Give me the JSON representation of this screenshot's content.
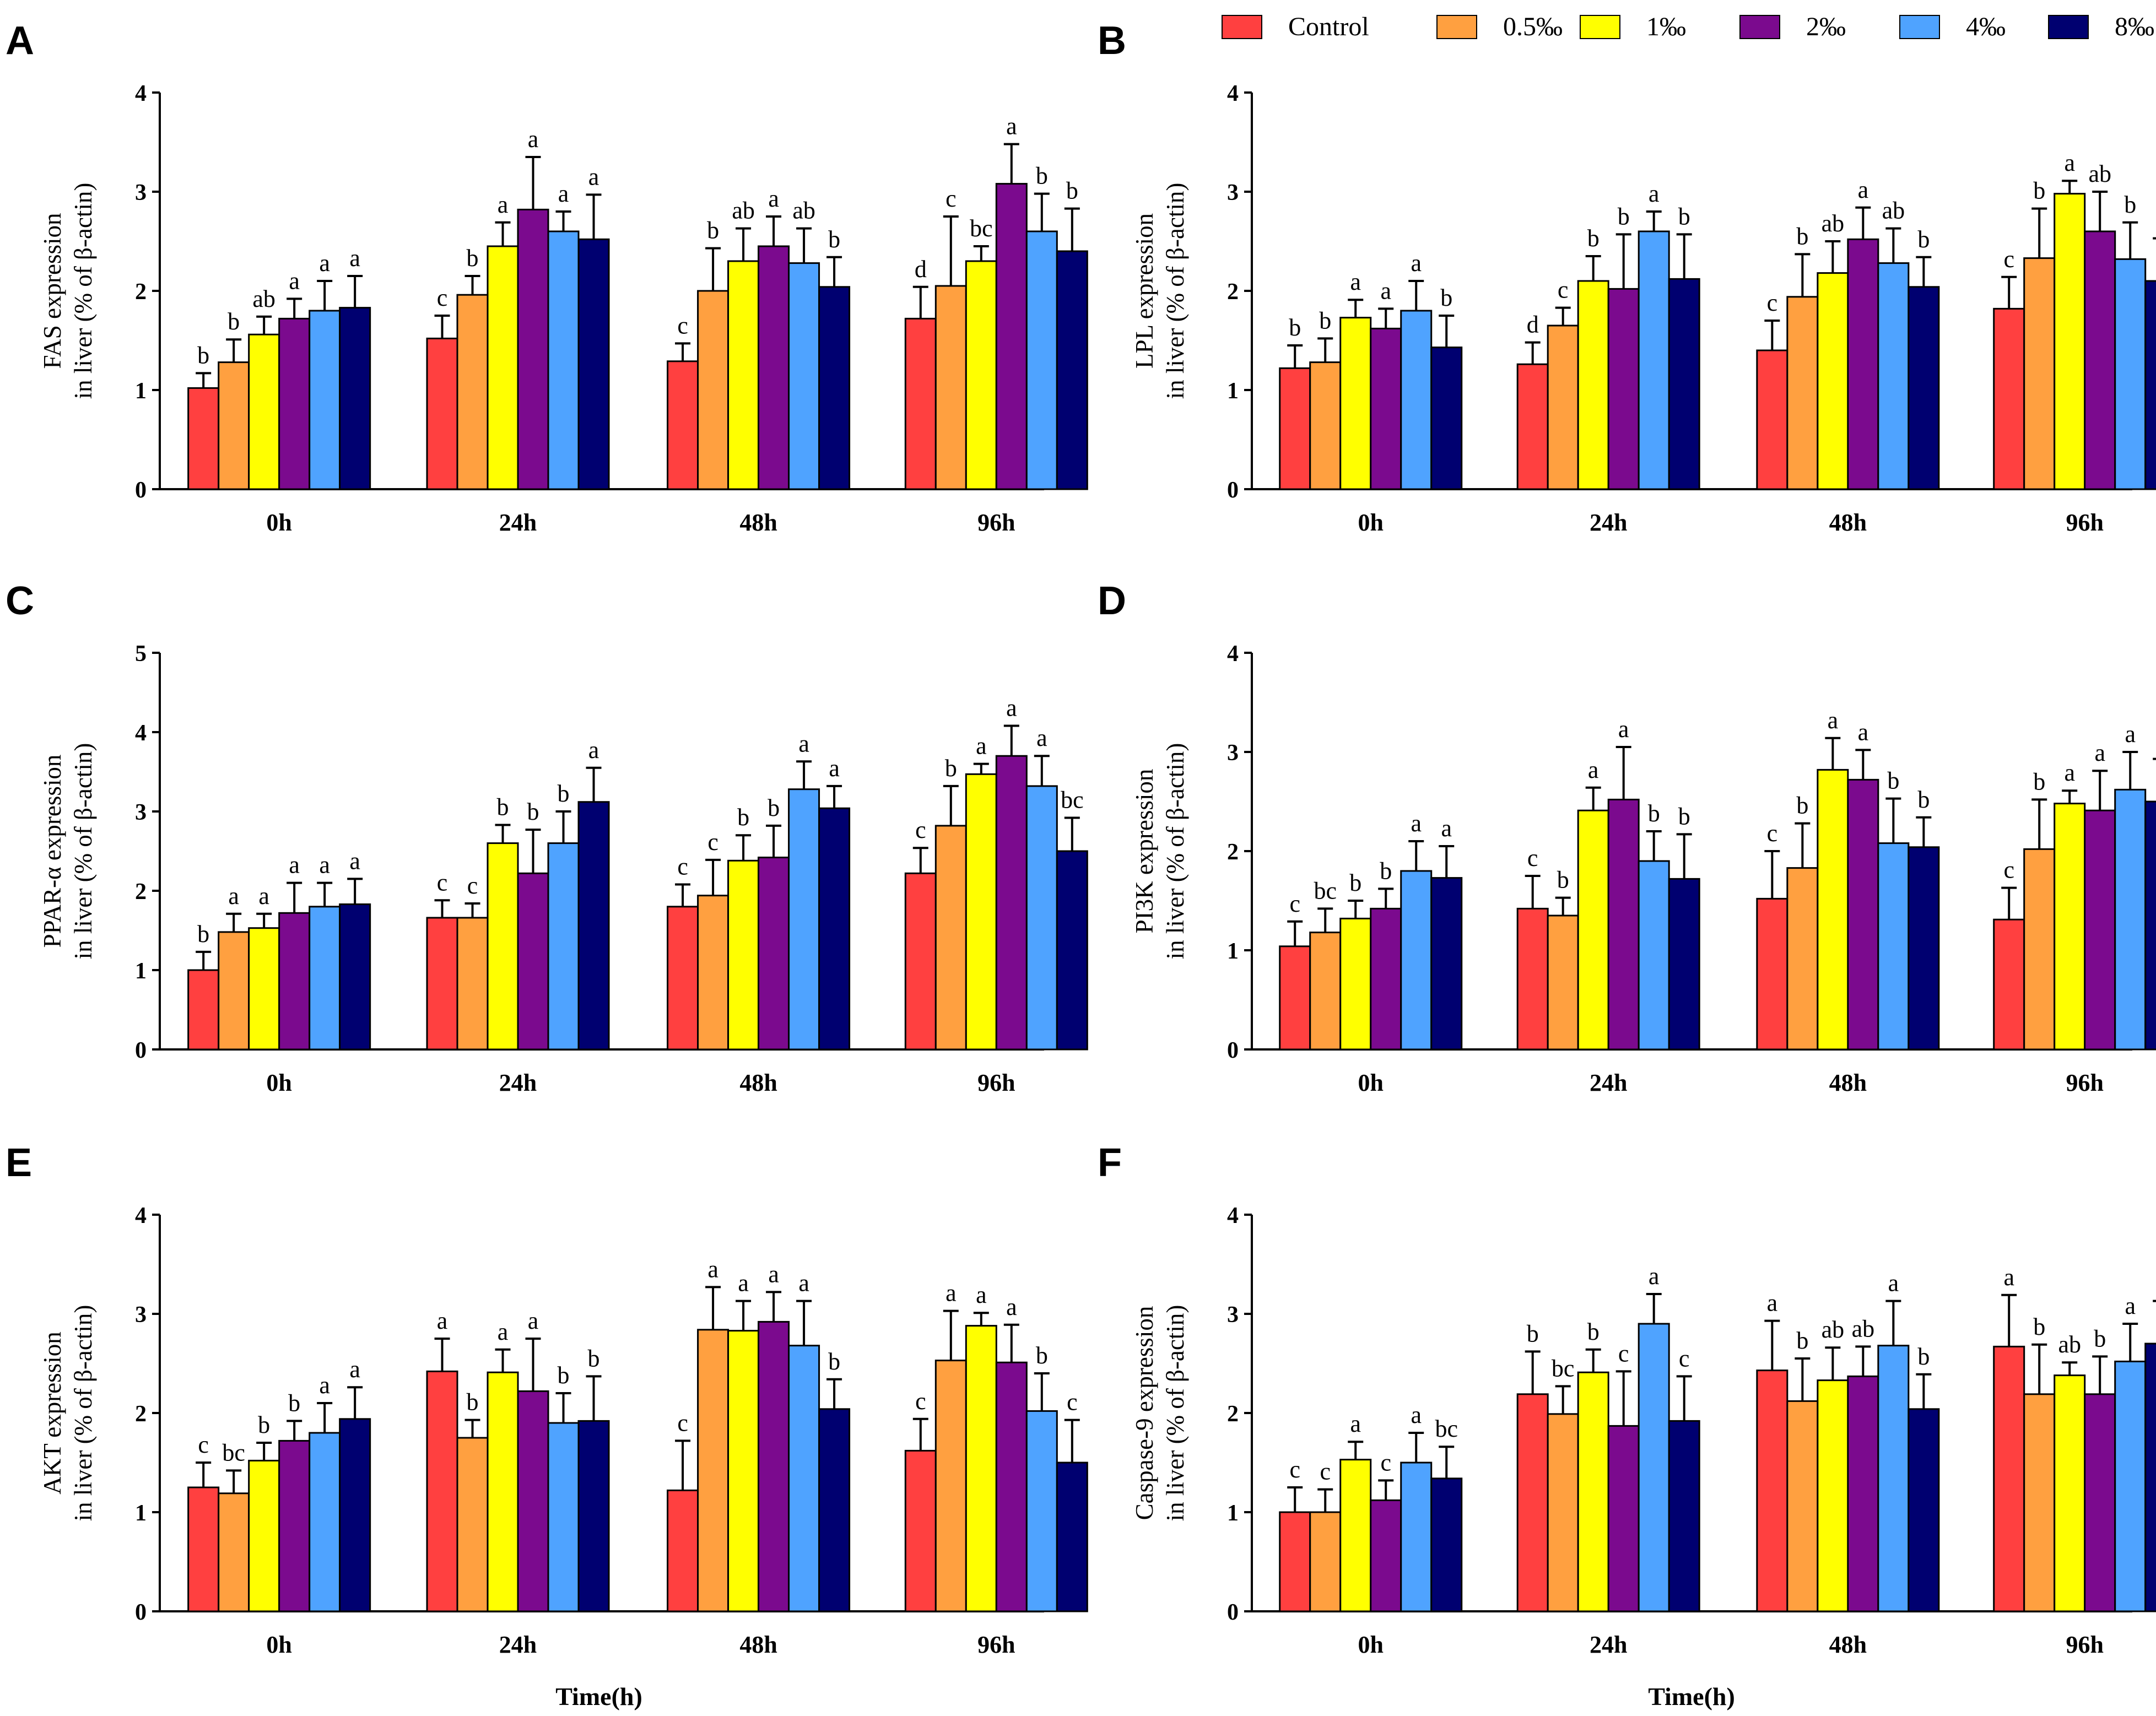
{
  "legend": {
    "items": [
      {
        "name": "Control",
        "color": "#ff4040"
      },
      {
        "name": "0.5‰",
        "color": "#ffa040"
      },
      {
        "name": "1‰",
        "color": "#ffff00"
      },
      {
        "name": "2‰",
        "color": "#7b0a8e"
      },
      {
        "name": "4‰",
        "color": "#4fa3ff"
      },
      {
        "name": "8‰",
        "color": "#000070"
      }
    ]
  },
  "x_axis_title": "Time(h)",
  "chart_data": [
    {
      "panel": "A",
      "type": "bar",
      "ylabel": [
        "FAS expression",
        "in liver (% of β-actin)"
      ],
      "categories": [
        "0h",
        "24h",
        "48h",
        "96h"
      ],
      "ylim": [
        0,
        4
      ],
      "yticks": [
        "0",
        "1",
        "2",
        "3",
        "4"
      ],
      "series": [
        {
          "name": "Control",
          "values": [
            1.02,
            1.52,
            1.29,
            1.72
          ],
          "errors": [
            0.15,
            0.23,
            0.18,
            0.32
          ],
          "letters": [
            "b",
            "c",
            "c",
            "d"
          ]
        },
        {
          "name": "0.5‰",
          "values": [
            1.28,
            1.96,
            2.0,
            2.05
          ],
          "errors": [
            0.23,
            0.19,
            0.43,
            0.7
          ],
          "letters": [
            "b",
            "b",
            "b",
            "c"
          ]
        },
        {
          "name": "1‰",
          "values": [
            1.56,
            2.45,
            2.3,
            2.3
          ],
          "errors": [
            0.18,
            0.24,
            0.33,
            0.15
          ],
          "letters": [
            "ab",
            "a",
            "ab",
            "bc"
          ]
        },
        {
          "name": "2‰",
          "values": [
            1.72,
            2.82,
            2.45,
            3.08
          ],
          "errors": [
            0.2,
            0.53,
            0.3,
            0.4
          ],
          "letters": [
            "a",
            "a",
            "a",
            "a"
          ]
        },
        {
          "name": "4‰",
          "values": [
            1.8,
            2.6,
            2.28,
            2.6
          ],
          "errors": [
            0.3,
            0.2,
            0.35,
            0.38
          ],
          "letters": [
            "a",
            "a",
            "ab",
            "b"
          ]
        },
        {
          "name": "8‰",
          "values": [
            1.83,
            2.52,
            2.04,
            2.4
          ],
          "errors": [
            0.32,
            0.45,
            0.3,
            0.43
          ],
          "letters": [
            "a",
            "a",
            "b",
            "b"
          ]
        }
      ]
    },
    {
      "panel": "B",
      "type": "bar",
      "ylabel": [
        "LPL expression",
        "in liver (% of β-actin)"
      ],
      "categories": [
        "0h",
        "24h",
        "48h",
        "96h"
      ],
      "ylim": [
        0,
        4
      ],
      "yticks": [
        "0",
        "1",
        "2",
        "3",
        "4"
      ],
      "series": [
        {
          "name": "Control",
          "values": [
            1.22,
            1.26,
            1.4,
            1.82
          ],
          "errors": [
            0.23,
            0.22,
            0.3,
            0.32
          ],
          "letters": [
            "b",
            "d",
            "c",
            "c"
          ]
        },
        {
          "name": "0.5‰",
          "values": [
            1.28,
            1.65,
            1.94,
            2.33
          ],
          "errors": [
            0.24,
            0.18,
            0.43,
            0.5
          ],
          "letters": [
            "b",
            "c",
            "b",
            "b"
          ]
        },
        {
          "name": "1‰",
          "values": [
            1.73,
            2.1,
            2.18,
            2.98
          ],
          "errors": [
            0.18,
            0.25,
            0.32,
            0.13
          ],
          "letters": [
            "a",
            "b",
            "ab",
            "a"
          ]
        },
        {
          "name": "2‰",
          "values": [
            1.62,
            2.02,
            2.52,
            2.6
          ],
          "errors": [
            0.2,
            0.55,
            0.32,
            0.4
          ],
          "letters": [
            "a",
            "b",
            "a",
            "ab"
          ]
        },
        {
          "name": "4‰",
          "values": [
            1.8,
            2.6,
            2.28,
            2.32
          ],
          "errors": [
            0.3,
            0.2,
            0.35,
            0.37
          ],
          "letters": [
            "a",
            "a",
            "ab",
            "b"
          ]
        },
        {
          "name": "8‰",
          "values": [
            1.43,
            2.12,
            2.04,
            2.1
          ],
          "errors": [
            0.32,
            0.45,
            0.3,
            0.43
          ],
          "letters": [
            "b",
            "b",
            "b",
            "c"
          ]
        }
      ]
    },
    {
      "panel": "C",
      "type": "bar",
      "ylabel": [
        "PPAR-α expression",
        "in liver (% of β-actin)"
      ],
      "categories": [
        "0h",
        "24h",
        "48h",
        "96h"
      ],
      "ylim": [
        0,
        5
      ],
      "yticks": [
        "0",
        "1",
        "2",
        "3",
        "4",
        "5"
      ],
      "series": [
        {
          "name": "Control",
          "values": [
            1.0,
            1.66,
            1.8,
            2.22
          ],
          "errors": [
            0.23,
            0.22,
            0.28,
            0.32
          ],
          "letters": [
            "b",
            "c",
            "c",
            "c"
          ]
        },
        {
          "name": "0.5‰",
          "values": [
            1.48,
            1.66,
            1.94,
            2.82
          ],
          "errors": [
            0.23,
            0.18,
            0.45,
            0.5
          ],
          "letters": [
            "a",
            "c",
            "c",
            "b"
          ]
        },
        {
          "name": "1‰",
          "values": [
            1.53,
            2.6,
            2.38,
            3.47
          ],
          "errors": [
            0.18,
            0.23,
            0.32,
            0.13
          ],
          "letters": [
            "a",
            "b",
            "b",
            "a"
          ]
        },
        {
          "name": "2‰",
          "values": [
            1.72,
            2.22,
            2.42,
            3.7
          ],
          "errors": [
            0.38,
            0.55,
            0.4,
            0.38
          ],
          "letters": [
            "a",
            "b",
            "b",
            "a"
          ]
        },
        {
          "name": "4‰",
          "values": [
            1.8,
            2.6,
            3.28,
            3.32
          ],
          "errors": [
            0.3,
            0.4,
            0.35,
            0.38
          ],
          "letters": [
            "a",
            "b",
            "a",
            "a"
          ]
        },
        {
          "name": "8‰",
          "values": [
            1.83,
            3.12,
            3.04,
            2.5
          ],
          "errors": [
            0.32,
            0.43,
            0.28,
            0.42
          ],
          "letters": [
            "a",
            "a",
            "a",
            "bc"
          ]
        }
      ]
    },
    {
      "panel": "D",
      "type": "bar",
      "ylabel": [
        "PI3K expression",
        "in liver (% of β-actin)"
      ],
      "categories": [
        "0h",
        "24h",
        "48h",
        "96h"
      ],
      "ylim": [
        0,
        4
      ],
      "yticks": [
        "0",
        "1",
        "2",
        "3",
        "4"
      ],
      "series": [
        {
          "name": "Control",
          "values": [
            1.04,
            1.42,
            1.52,
            1.31
          ],
          "errors": [
            0.25,
            0.33,
            0.48,
            0.32
          ],
          "letters": [
            "c",
            "c",
            "c",
            "c"
          ]
        },
        {
          "name": "0.5‰",
          "values": [
            1.18,
            1.35,
            1.83,
            2.02
          ],
          "errors": [
            0.24,
            0.18,
            0.45,
            0.5
          ],
          "letters": [
            "bc",
            "b",
            "b",
            "b"
          ]
        },
        {
          "name": "1‰",
          "values": [
            1.32,
            2.41,
            2.82,
            2.48
          ],
          "errors": [
            0.18,
            0.23,
            0.32,
            0.13
          ],
          "letters": [
            "b",
            "a",
            "a",
            "a"
          ]
        },
        {
          "name": "2‰",
          "values": [
            1.42,
            2.52,
            2.72,
            2.41
          ],
          "errors": [
            0.2,
            0.53,
            0.3,
            0.4
          ],
          "letters": [
            "b",
            "a",
            "a",
            "a"
          ]
        },
        {
          "name": "4‰",
          "values": [
            1.8,
            1.9,
            2.08,
            2.62
          ],
          "errors": [
            0.3,
            0.3,
            0.45,
            0.38
          ],
          "letters": [
            "a",
            "b",
            "b",
            "a"
          ]
        },
        {
          "name": "8‰",
          "values": [
            1.73,
            1.72,
            2.04,
            2.5
          ],
          "errors": [
            0.32,
            0.45,
            0.3,
            0.43
          ],
          "letters": [
            "a",
            "b",
            "b",
            "a"
          ]
        }
      ]
    },
    {
      "panel": "E",
      "type": "bar",
      "ylabel": [
        "AKT expression",
        "in liver (% of β-actin)"
      ],
      "categories": [
        "0h",
        "24h",
        "48h",
        "96h"
      ],
      "ylim": [
        0,
        4
      ],
      "yticks": [
        "0",
        "1",
        "2",
        "3",
        "4"
      ],
      "series": [
        {
          "name": "Control",
          "values": [
            1.25,
            2.42,
            1.22,
            1.62
          ],
          "errors": [
            0.25,
            0.33,
            0.5,
            0.32
          ],
          "letters": [
            "c",
            "a",
            "c",
            "c"
          ]
        },
        {
          "name": "0.5‰",
          "values": [
            1.19,
            1.75,
            2.84,
            2.53
          ],
          "errors": [
            0.23,
            0.18,
            0.43,
            0.5
          ],
          "letters": [
            "bc",
            "b",
            "a",
            "a"
          ]
        },
        {
          "name": "1‰",
          "values": [
            1.52,
            2.41,
            2.83,
            2.88
          ],
          "errors": [
            0.18,
            0.23,
            0.3,
            0.13
          ],
          "letters": [
            "b",
            "a",
            "a",
            "a"
          ]
        },
        {
          "name": "2‰",
          "values": [
            1.72,
            2.22,
            2.92,
            2.51
          ],
          "errors": [
            0.2,
            0.53,
            0.3,
            0.38
          ],
          "letters": [
            "b",
            "a",
            "a",
            "a"
          ]
        },
        {
          "name": "4‰",
          "values": [
            1.8,
            1.9,
            2.68,
            2.02
          ],
          "errors": [
            0.3,
            0.3,
            0.45,
            0.38
          ],
          "letters": [
            "a",
            "b",
            "a",
            "b"
          ]
        },
        {
          "name": "8‰",
          "values": [
            1.94,
            1.92,
            2.04,
            1.5
          ],
          "errors": [
            0.32,
            0.45,
            0.3,
            0.43
          ],
          "letters": [
            "a",
            "b",
            "b",
            "c"
          ]
        }
      ]
    },
    {
      "panel": "F",
      "type": "bar",
      "ylabel": [
        "Caspase-9 expression",
        "in liver (% of β-actin)"
      ],
      "categories": [
        "0h",
        "24h",
        "48h",
        "96h"
      ],
      "ylim": [
        0,
        4
      ],
      "yticks": [
        "0",
        "1",
        "2",
        "3",
        "4"
      ],
      "series": [
        {
          "name": "Control",
          "values": [
            1.0,
            2.19,
            2.43,
            2.67
          ],
          "errors": [
            0.25,
            0.43,
            0.5,
            0.52
          ],
          "letters": [
            "c",
            "b",
            "a",
            "a"
          ]
        },
        {
          "name": "0.5‰",
          "values": [
            1.0,
            1.99,
            2.12,
            2.19
          ],
          "errors": [
            0.23,
            0.28,
            0.43,
            0.5
          ],
          "letters": [
            "c",
            "bc",
            "b",
            "b"
          ]
        },
        {
          "name": "1‰",
          "values": [
            1.53,
            2.41,
            2.33,
            2.38
          ],
          "errors": [
            0.18,
            0.23,
            0.33,
            0.13
          ],
          "letters": [
            "a",
            "b",
            "ab",
            "ab"
          ]
        },
        {
          "name": "2‰",
          "values": [
            1.12,
            1.87,
            2.37,
            2.19
          ],
          "errors": [
            0.2,
            0.55,
            0.3,
            0.38
          ],
          "letters": [
            "c",
            "c",
            "ab",
            "b"
          ]
        },
        {
          "name": "4‰",
          "values": [
            1.5,
            2.9,
            2.68,
            2.52
          ],
          "errors": [
            0.3,
            0.3,
            0.45,
            0.38
          ],
          "letters": [
            "a",
            "a",
            "a",
            "a"
          ]
        },
        {
          "name": "8‰",
          "values": [
            1.34,
            1.92,
            2.04,
            2.7
          ],
          "errors": [
            0.32,
            0.45,
            0.35,
            0.43
          ],
          "letters": [
            "bc",
            "c",
            "b",
            "a"
          ]
        }
      ]
    }
  ]
}
